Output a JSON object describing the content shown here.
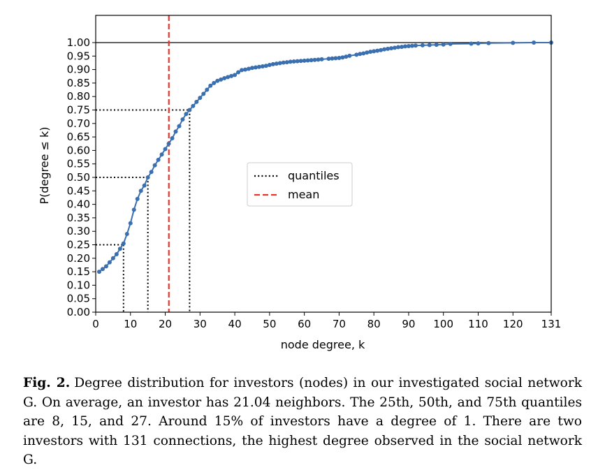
{
  "chart_data": {
    "type": "line",
    "xlabel": "node degree, k",
    "ylabel": "P(degree ≤ k)",
    "xlim": [
      0,
      131
    ],
    "ylim": [
      0,
      1.0
    ],
    "xticks": [
      0,
      10,
      20,
      30,
      40,
      50,
      60,
      70,
      80,
      90,
      100,
      110,
      120,
      131
    ],
    "yticks": [
      0.0,
      0.05,
      0.1,
      0.15,
      0.2,
      0.25,
      0.3,
      0.35,
      0.4,
      0.45,
      0.5,
      0.55,
      0.6,
      0.65,
      0.7,
      0.75,
      0.8,
      0.85,
      0.9,
      0.95,
      1.0
    ],
    "grid": false,
    "legend_position": "center",
    "legend": [
      {
        "label": "quantiles",
        "style": "dotted",
        "color": "#000000"
      },
      {
        "label": "mean",
        "style": "dashed",
        "color": "#e8352b"
      }
    ],
    "series": [
      {
        "color": "#3a6fb0",
        "x": [
          1,
          2,
          3,
          4,
          5,
          6,
          7,
          8,
          9,
          10,
          11,
          12,
          13,
          14,
          15,
          16,
          17,
          18,
          19,
          20,
          21,
          22,
          23,
          24,
          25,
          26,
          27,
          28,
          29,
          30,
          31,
          32,
          33,
          34,
          35,
          36,
          37,
          38,
          39,
          40,
          41,
          42,
          43,
          44,
          45,
          46,
          47,
          48,
          49,
          50,
          51,
          52,
          53,
          54,
          55,
          56,
          57,
          58,
          59,
          60,
          61,
          62,
          63,
          64,
          65,
          67,
          68,
          69,
          70,
          71,
          72,
          73,
          75,
          76,
          77,
          78,
          79,
          80,
          81,
          82,
          83,
          84,
          85,
          86,
          87,
          88,
          89,
          90,
          91,
          92,
          94,
          96,
          98,
          100,
          102,
          108,
          110,
          113,
          120,
          126,
          131
        ],
        "values": [
          0.15,
          0.16,
          0.17,
          0.185,
          0.2,
          0.215,
          0.235,
          0.255,
          0.29,
          0.33,
          0.38,
          0.42,
          0.45,
          0.47,
          0.5,
          0.52,
          0.545,
          0.565,
          0.585,
          0.605,
          0.625,
          0.645,
          0.67,
          0.69,
          0.715,
          0.735,
          0.75,
          0.765,
          0.78,
          0.795,
          0.81,
          0.825,
          0.84,
          0.85,
          0.858,
          0.863,
          0.868,
          0.872,
          0.876,
          0.88,
          0.89,
          0.898,
          0.9,
          0.903,
          0.906,
          0.908,
          0.91,
          0.912,
          0.914,
          0.917,
          0.92,
          0.922,
          0.924,
          0.926,
          0.927,
          0.929,
          0.93,
          0.931,
          0.932,
          0.933,
          0.934,
          0.935,
          0.936,
          0.937,
          0.938,
          0.94,
          0.941,
          0.942,
          0.943,
          0.945,
          0.948,
          0.951,
          0.955,
          0.958,
          0.96,
          0.963,
          0.966,
          0.968,
          0.97,
          0.972,
          0.975,
          0.977,
          0.979,
          0.981,
          0.983,
          0.984,
          0.986,
          0.987,
          0.988,
          0.989,
          0.99,
          0.991,
          0.992,
          0.993,
          0.995,
          0.996,
          0.997,
          0.998,
          0.999,
          1.0,
          1.0
        ]
      }
    ],
    "quantiles": [
      {
        "x": 8,
        "y": 0.25
      },
      {
        "x": 15,
        "y": 0.5
      },
      {
        "x": 27,
        "y": 0.75
      }
    ],
    "mean": 21.04,
    "reference_line_y": 1.0
  },
  "caption": {
    "label": "Fig. 2.",
    "text": "Degree distribution for investors (nodes) in our investigated social network G. On average, an investor has 21.04 neighbors. The 25th, 50th, and 75th quantiles are 8, 15, and 27. Around 15% of investors have a degree of 1. There are two investors with 131 connections, the highest degree observed in the social network G."
  }
}
